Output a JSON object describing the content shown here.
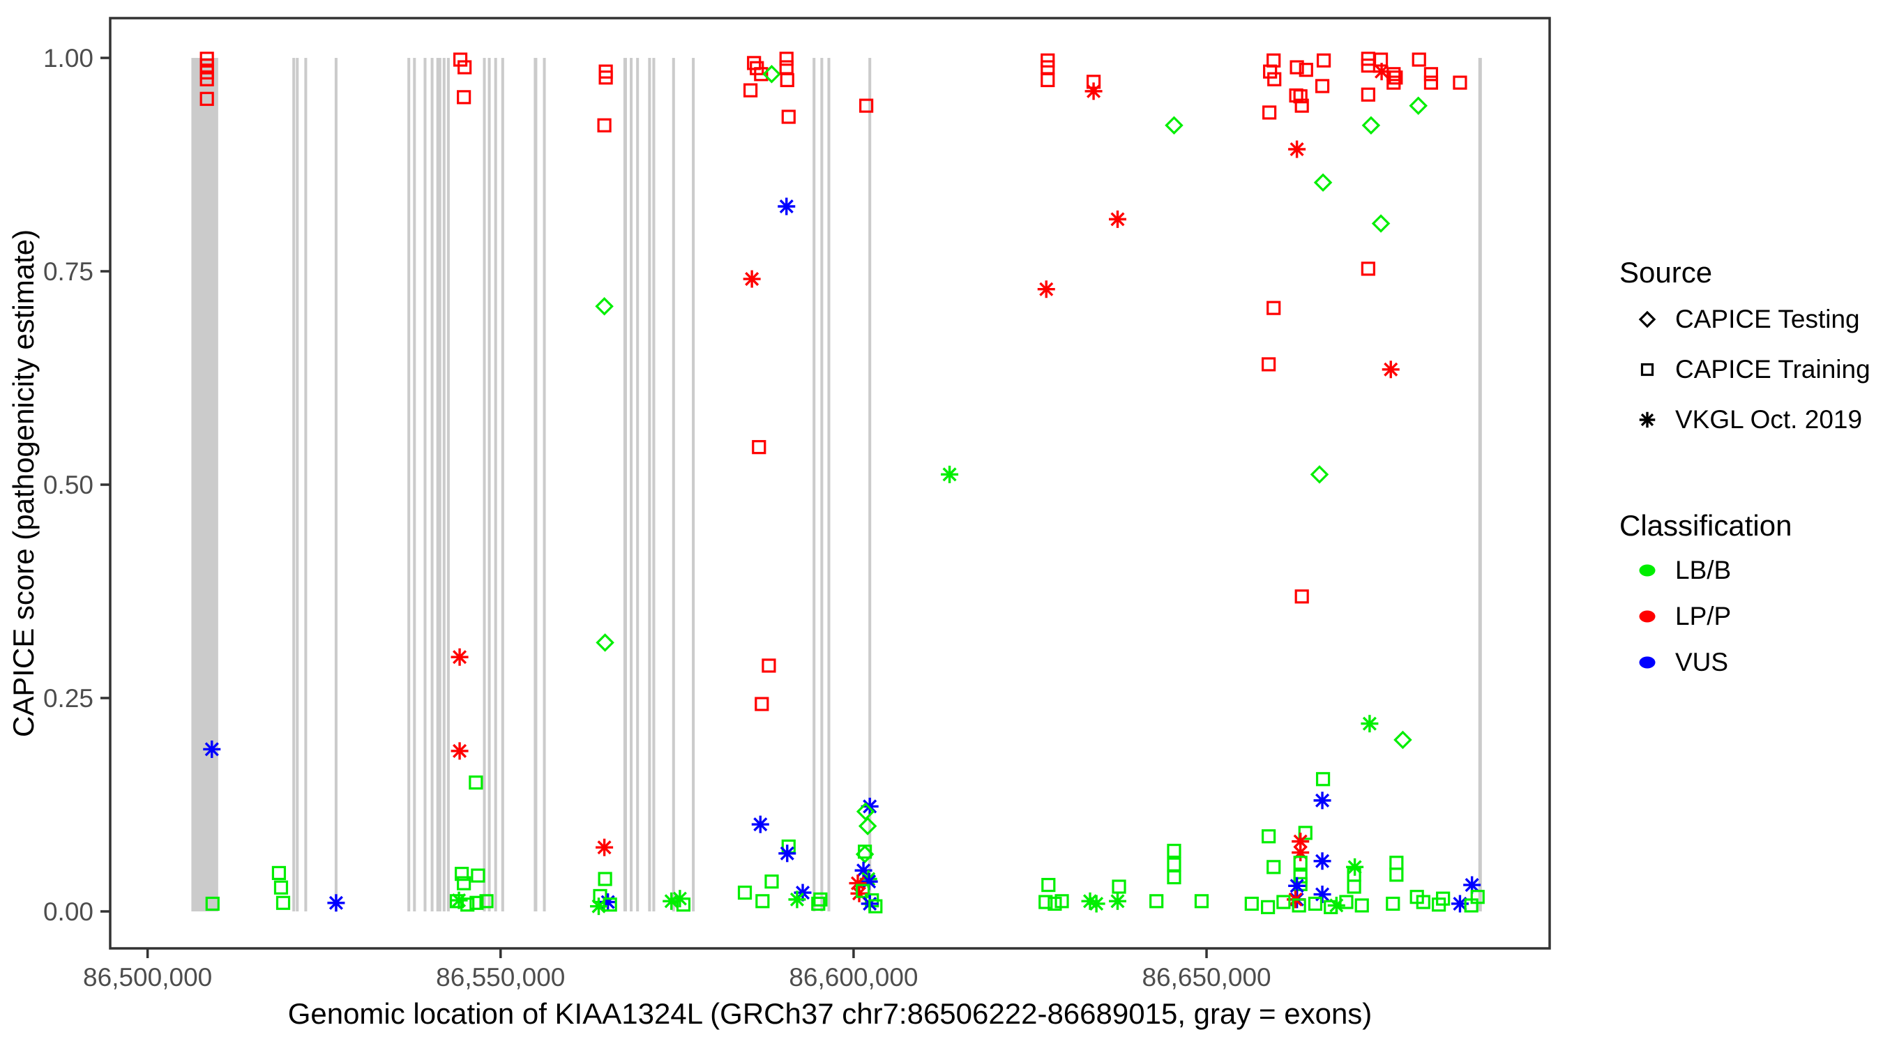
{
  "chart_data": {
    "type": "scatter",
    "title": "",
    "xlabel": "Genomic location of KIAA1324L (GRCh37 chr7:86506222-86689015, gray = exons)",
    "ylabel": "CAPICE score (pathogenicity estimate)",
    "xlim": [
      86494700,
      86698600
    ],
    "ylim": [
      -0.0433,
      1.0466
    ],
    "grid": "off",
    "x_ticks": [
      {
        "value": 86500000,
        "label": "86,500,000"
      },
      {
        "value": 86550000,
        "label": "86,550,000"
      },
      {
        "value": 86600000,
        "label": "86,600,000"
      },
      {
        "value": 86650000,
        "label": "86,650,000"
      }
    ],
    "y_ticks": [
      {
        "value": 0.0,
        "label": "0.00"
      },
      {
        "value": 0.25,
        "label": "0.25"
      },
      {
        "value": 0.5,
        "label": "0.50"
      },
      {
        "value": 0.75,
        "label": "0.75"
      },
      {
        "value": 1.0,
        "label": "1.00"
      }
    ],
    "exon_color": "#cbcbcb",
    "exon_score_span": [
      0.0,
      1.0
    ],
    "exons": [
      [
        86506200,
        86510000
      ],
      [
        86520500,
        86520900
      ],
      [
        86521000,
        86521400
      ],
      [
        86522200,
        86522600
      ],
      [
        86526500,
        86526900
      ],
      [
        86536800,
        86537200
      ],
      [
        86537600,
        86538000
      ],
      [
        86539100,
        86539500
      ],
      [
        86540100,
        86540500
      ],
      [
        86540900,
        86541600
      ],
      [
        86541800,
        86542200
      ],
      [
        86542400,
        86542800
      ],
      [
        86547500,
        86547900
      ],
      [
        86548200,
        86548600
      ],
      [
        86549100,
        86549500
      ],
      [
        86550100,
        86550500
      ],
      [
        86554700,
        86555200
      ],
      [
        86556000,
        86556400
      ],
      [
        86567400,
        86567900
      ],
      [
        86568300,
        86568700
      ],
      [
        86569200,
        86569600
      ],
      [
        86570900,
        86571300
      ],
      [
        86571500,
        86571900
      ],
      [
        86574300,
        86574700
      ],
      [
        86577100,
        86577500
      ],
      [
        86594200,
        86594600
      ],
      [
        86595300,
        86595700
      ],
      [
        86596300,
        86596700
      ],
      [
        86602100,
        86602500
      ],
      [
        86688500,
        86689000
      ]
    ],
    "legend": {
      "source": {
        "header": "Source",
        "items": [
          {
            "label": "CAPICE Testing",
            "marker": "diamond"
          },
          {
            "label": "CAPICE Training",
            "marker": "square"
          },
          {
            "label": "VKGL Oct. 2019",
            "marker": "asterisk"
          }
        ]
      },
      "classification": {
        "header": "Classification",
        "items": [
          {
            "label": "LB/B",
            "color_key": "g"
          },
          {
            "label": "LP/P",
            "color_key": "r"
          },
          {
            "label": "VUS",
            "color_key": "b"
          }
        ]
      }
    },
    "colors": {
      "g": "#00ee00",
      "r": "#ff0000",
      "b": "#0000ff"
    },
    "marker_codes": {
      "sq": "CAPICE Training (open square)",
      "di": "CAPICE Testing (open diamond)",
      "as": "VKGL Oct. 2019 (asterisk)"
    },
    "class_codes": {
      "g": "LB/B",
      "r": "LP/P",
      "b": "VUS"
    },
    "points_format": [
      "genomic_position",
      "capice_score",
      "marker_code",
      "class_code"
    ],
    "points": [
      [
        86508400,
        0.999,
        "sq",
        "r"
      ],
      [
        86508400,
        0.991,
        "sq",
        "r"
      ],
      [
        86508400,
        0.983,
        "sq",
        "r"
      ],
      [
        86508400,
        0.975,
        "sq",
        "r"
      ],
      [
        86508400,
        0.952,
        "sq",
        "r"
      ],
      [
        86509100,
        0.19,
        "as",
        "b"
      ],
      [
        86509200,
        0.009,
        "sq",
        "g"
      ],
      [
        86518600,
        0.045,
        "sq",
        "g"
      ],
      [
        86518900,
        0.028,
        "sq",
        "g"
      ],
      [
        86519200,
        0.01,
        "sq",
        "g"
      ],
      [
        86526700,
        0.01,
        "as",
        "b"
      ],
      [
        86544300,
        0.998,
        "sq",
        "r"
      ],
      [
        86544900,
        0.989,
        "sq",
        "r"
      ],
      [
        86544800,
        0.954,
        "sq",
        "r"
      ],
      [
        86544200,
        0.298,
        "as",
        "r"
      ],
      [
        86544200,
        0.188,
        "as",
        "r"
      ],
      [
        86546500,
        0.151,
        "sq",
        "g"
      ],
      [
        86544500,
        0.044,
        "sq",
        "g"
      ],
      [
        86546800,
        0.042,
        "sq",
        "g"
      ],
      [
        86544800,
        0.033,
        "sq",
        "g"
      ],
      [
        86544100,
        0.013,
        "as",
        "g"
      ],
      [
        86543800,
        0.012,
        "sq",
        "g"
      ],
      [
        86545300,
        0.008,
        "sq",
        "g"
      ],
      [
        86546600,
        0.01,
        "sq",
        "g"
      ],
      [
        86548000,
        0.012,
        "sq",
        "g"
      ],
      [
        86564900,
        0.984,
        "sq",
        "r"
      ],
      [
        86564900,
        0.977,
        "sq",
        "r"
      ],
      [
        86564700,
        0.921,
        "sq",
        "r"
      ],
      [
        86564700,
        0.709,
        "di",
        "g"
      ],
      [
        86564800,
        0.315,
        "di",
        "g"
      ],
      [
        86564700,
        0.075,
        "as",
        "r"
      ],
      [
        86564800,
        0.038,
        "sq",
        "g"
      ],
      [
        86564100,
        0.018,
        "sq",
        "g"
      ],
      [
        86565200,
        0.011,
        "as",
        "b"
      ],
      [
        86565500,
        0.008,
        "sq",
        "g"
      ],
      [
        86563900,
        0.006,
        "as",
        "g"
      ],
      [
        86574200,
        0.012,
        "as",
        "g"
      ],
      [
        86575400,
        0.015,
        "as",
        "g"
      ],
      [
        86575900,
        0.008,
        "sq",
        "g"
      ],
      [
        86585900,
        0.994,
        "sq",
        "r"
      ],
      [
        86586300,
        0.988,
        "sq",
        "r"
      ],
      [
        86586900,
        0.981,
        "sq",
        "r"
      ],
      [
        86585400,
        0.962,
        "sq",
        "r"
      ],
      [
        86588400,
        0.981,
        "di",
        "g"
      ],
      [
        86590500,
        0.999,
        "sq",
        "r"
      ],
      [
        86590500,
        0.989,
        "sq",
        "r"
      ],
      [
        86590600,
        0.974,
        "sq",
        "r"
      ],
      [
        86590800,
        0.931,
        "sq",
        "r"
      ],
      [
        86590500,
        0.826,
        "as",
        "b"
      ],
      [
        86585600,
        0.741,
        "as",
        "r"
      ],
      [
        86586600,
        0.544,
        "sq",
        "r"
      ],
      [
        86588000,
        0.288,
        "sq",
        "r"
      ],
      [
        86587000,
        0.243,
        "sq",
        "r"
      ],
      [
        86586800,
        0.102,
        "as",
        "b"
      ],
      [
        86590800,
        0.076,
        "sq",
        "g"
      ],
      [
        86590600,
        0.068,
        "as",
        "b"
      ],
      [
        86584600,
        0.022,
        "sq",
        "g"
      ],
      [
        86587100,
        0.012,
        "sq",
        "g"
      ],
      [
        86588400,
        0.035,
        "sq",
        "g"
      ],
      [
        86592800,
        0.022,
        "as",
        "b"
      ],
      [
        86592000,
        0.014,
        "as",
        "g"
      ],
      [
        86595300,
        0.014,
        "sq",
        "g"
      ],
      [
        86595000,
        0.009,
        "sq",
        "g"
      ],
      [
        86601800,
        0.944,
        "sq",
        "r"
      ],
      [
        86602300,
        0.123,
        "as",
        "b"
      ],
      [
        86601700,
        0.117,
        "di",
        "g"
      ],
      [
        86602000,
        0.1,
        "di",
        "g"
      ],
      [
        86601600,
        0.07,
        "sq",
        "g"
      ],
      [
        86601600,
        0.067,
        "di",
        "g"
      ],
      [
        86601400,
        0.048,
        "as",
        "b"
      ],
      [
        86602100,
        0.038,
        "as",
        "g"
      ],
      [
        86602200,
        0.035,
        "as",
        "b"
      ],
      [
        86600600,
        0.033,
        "as",
        "r"
      ],
      [
        86600800,
        0.021,
        "as",
        "r"
      ],
      [
        86601300,
        0.024,
        "sq",
        "g"
      ],
      [
        86602600,
        0.013,
        "sq",
        "g"
      ],
      [
        86602300,
        0.009,
        "as",
        "b"
      ],
      [
        86603100,
        0.006,
        "sq",
        "g"
      ],
      [
        86613600,
        0.512,
        "as",
        "g"
      ],
      [
        86627500,
        0.997,
        "sq",
        "r"
      ],
      [
        86627500,
        0.989,
        "sq",
        "r"
      ],
      [
        86627500,
        0.974,
        "sq",
        "r"
      ],
      [
        86627300,
        0.729,
        "as",
        "r"
      ],
      [
        86627600,
        0.031,
        "sq",
        "g"
      ],
      [
        86627200,
        0.011,
        "sq",
        "g"
      ],
      [
        86628500,
        0.009,
        "sq",
        "g"
      ],
      [
        86629500,
        0.012,
        "sq",
        "g"
      ],
      [
        86634000,
        0.972,
        "sq",
        "r"
      ],
      [
        86634000,
        0.961,
        "as",
        "r"
      ],
      [
        86637400,
        0.811,
        "as",
        "r"
      ],
      [
        86633500,
        0.012,
        "as",
        "g"
      ],
      [
        86634400,
        0.009,
        "as",
        "g"
      ],
      [
        86637400,
        0.012,
        "as",
        "g"
      ],
      [
        86637600,
        0.029,
        "sq",
        "g"
      ],
      [
        86642900,
        0.012,
        "sq",
        "g"
      ],
      [
        86645400,
        0.921,
        "di",
        "g"
      ],
      [
        86645400,
        0.071,
        "sq",
        "g"
      ],
      [
        86645400,
        0.055,
        "sq",
        "g"
      ],
      [
        86645400,
        0.04,
        "sq",
        "g"
      ],
      [
        86649300,
        0.012,
        "sq",
        "g"
      ],
      [
        86659500,
        0.997,
        "sq",
        "r"
      ],
      [
        86659000,
        0.984,
        "sq",
        "r"
      ],
      [
        86659600,
        0.975,
        "sq",
        "r"
      ],
      [
        86662800,
        0.989,
        "sq",
        "r"
      ],
      [
        86664100,
        0.986,
        "sq",
        "r"
      ],
      [
        86666600,
        0.997,
        "sq",
        "r"
      ],
      [
        86666400,
        0.967,
        "sq",
        "r"
      ],
      [
        86662700,
        0.956,
        "sq",
        "r"
      ],
      [
        86663300,
        0.955,
        "sq",
        "r"
      ],
      [
        86663500,
        0.944,
        "sq",
        "r"
      ],
      [
        86658900,
        0.936,
        "sq",
        "r"
      ],
      [
        86672900,
        0.999,
        "sq",
        "r"
      ],
      [
        86672900,
        0.991,
        "sq",
        "r"
      ],
      [
        86674700,
        0.998,
        "sq",
        "r"
      ],
      [
        86674800,
        0.984,
        "as",
        "r"
      ],
      [
        86676500,
        0.981,
        "sq",
        "r"
      ],
      [
        86676800,
        0.977,
        "sq",
        "r"
      ],
      [
        86676500,
        0.971,
        "sq",
        "r"
      ],
      [
        86672900,
        0.957,
        "sq",
        "r"
      ],
      [
        86680100,
        0.998,
        "sq",
        "r"
      ],
      [
        86681800,
        0.981,
        "sq",
        "r"
      ],
      [
        86681800,
        0.971,
        "sq",
        "r"
      ],
      [
        86685900,
        0.971,
        "sq",
        "r"
      ],
      [
        86680000,
        0.944,
        "di",
        "g"
      ],
      [
        86673300,
        0.921,
        "di",
        "g"
      ],
      [
        86662800,
        0.893,
        "as",
        "r"
      ],
      [
        86666500,
        0.854,
        "di",
        "g"
      ],
      [
        86674700,
        0.806,
        "di",
        "g"
      ],
      [
        86672900,
        0.753,
        "sq",
        "r"
      ],
      [
        86659500,
        0.707,
        "sq",
        "r"
      ],
      [
        86658800,
        0.641,
        "sq",
        "r"
      ],
      [
        86676100,
        0.635,
        "as",
        "r"
      ],
      [
        86666000,
        0.512,
        "di",
        "g"
      ],
      [
        86663500,
        0.369,
        "sq",
        "r"
      ],
      [
        86673100,
        0.22,
        "as",
        "g"
      ],
      [
        86677800,
        0.201,
        "di",
        "g"
      ],
      [
        86666500,
        0.155,
        "sq",
        "g"
      ],
      [
        86666400,
        0.13,
        "as",
        "b"
      ],
      [
        86658800,
        0.088,
        "sq",
        "g"
      ],
      [
        86664000,
        0.092,
        "sq",
        "g"
      ],
      [
        86663300,
        0.082,
        "as",
        "r"
      ],
      [
        86663300,
        0.069,
        "as",
        "r"
      ],
      [
        86663300,
        0.057,
        "sq",
        "g"
      ],
      [
        86666400,
        0.059,
        "as",
        "b"
      ],
      [
        86671000,
        0.052,
        "as",
        "g"
      ],
      [
        86659500,
        0.052,
        "sq",
        "g"
      ],
      [
        86663300,
        0.041,
        "sq",
        "g"
      ],
      [
        86663300,
        0.032,
        "sq",
        "g"
      ],
      [
        86670900,
        0.043,
        "sq",
        "g"
      ],
      [
        86670900,
        0.029,
        "sq",
        "g"
      ],
      [
        86676900,
        0.057,
        "sq",
        "g"
      ],
      [
        86676900,
        0.043,
        "sq",
        "g"
      ],
      [
        86662800,
        0.03,
        "as",
        "b"
      ],
      [
        86662800,
        0.014,
        "as",
        "b"
      ],
      [
        86666400,
        0.02,
        "as",
        "b"
      ],
      [
        86662600,
        0.014,
        "as",
        "r"
      ],
      [
        86668400,
        0.007,
        "as",
        "g"
      ],
      [
        86656400,
        0.009,
        "sq",
        "g"
      ],
      [
        86658700,
        0.005,
        "sq",
        "g"
      ],
      [
        86660900,
        0.011,
        "sq",
        "g"
      ],
      [
        86663100,
        0.007,
        "sq",
        "g"
      ],
      [
        86665400,
        0.009,
        "sq",
        "g"
      ],
      [
        86667600,
        0.005,
        "sq",
        "g"
      ],
      [
        86669800,
        0.011,
        "sq",
        "g"
      ],
      [
        86672000,
        0.007,
        "sq",
        "g"
      ],
      [
        86676400,
        0.009,
        "sq",
        "g"
      ],
      [
        86679800,
        0.017,
        "sq",
        "g"
      ],
      [
        86687600,
        0.031,
        "as",
        "b"
      ],
      [
        86685900,
        0.009,
        "as",
        "b"
      ],
      [
        86680700,
        0.011,
        "sq",
        "g"
      ],
      [
        86682900,
        0.008,
        "sq",
        "g"
      ],
      [
        86683500,
        0.015,
        "sq",
        "g"
      ],
      [
        86687500,
        0.007,
        "sq",
        "g"
      ],
      [
        86688400,
        0.017,
        "sq",
        "g"
      ]
    ]
  }
}
